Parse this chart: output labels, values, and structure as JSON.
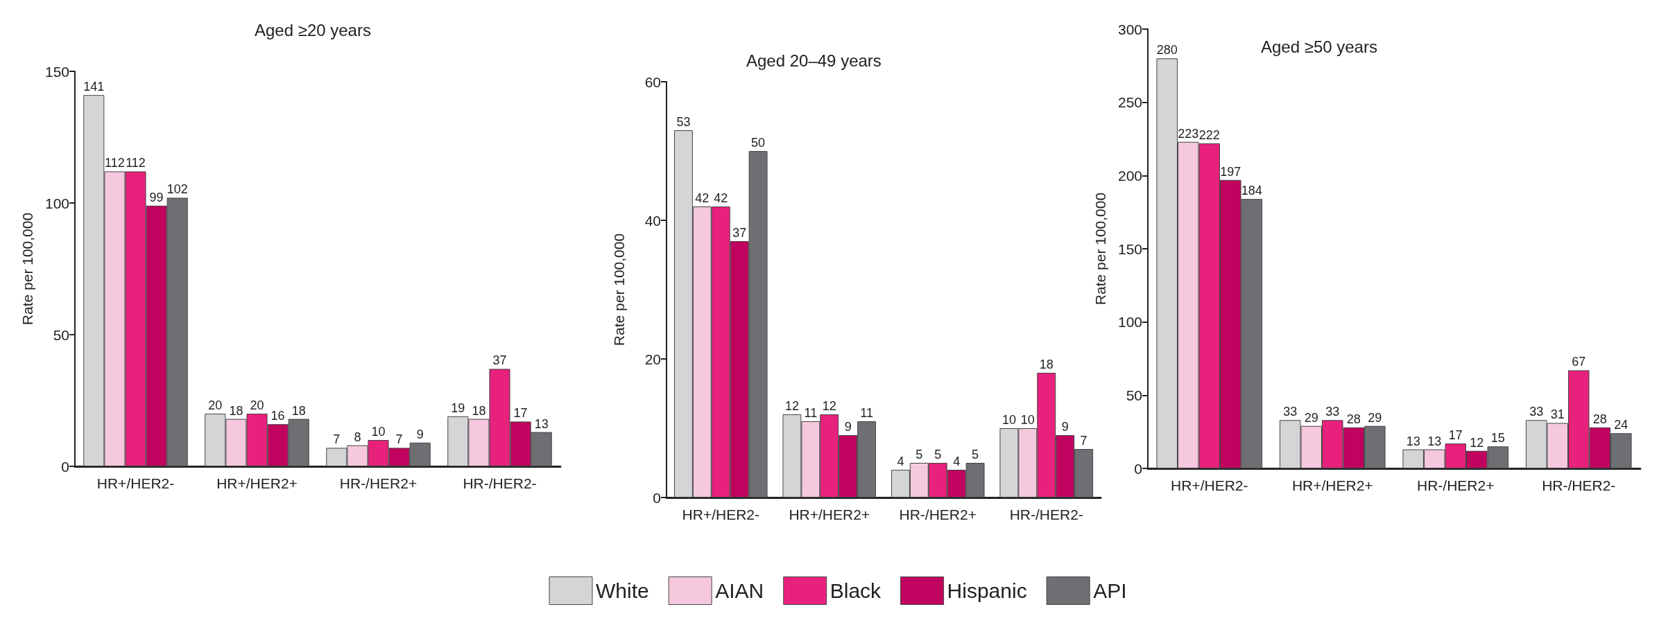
{
  "chart_data": [
    {
      "type": "bar",
      "title": "Aged ≥20 years",
      "ylabel": "Rate per 100,000",
      "categories": [
        "HR+/HER2-",
        "HR+/HER2+",
        "HR-/HER2+",
        "HR-/HER2-"
      ],
      "ylim": [
        0,
        150
      ],
      "yticks": [
        0,
        50,
        100,
        150
      ],
      "grid": false,
      "data_labels": true,
      "series": [
        {
          "color": "#d4d5d6",
          "values": [
            141,
            20,
            7,
            19
          ]
        },
        {
          "color": "#f5c8dd",
          "values": [
            112,
            18,
            8,
            18
          ]
        },
        {
          "color": "#e8217c",
          "values": [
            112,
            20,
            10,
            37
          ]
        },
        {
          "color": "#c1035f",
          "values": [
            99,
            16,
            7,
            17
          ]
        },
        {
          "color": "#6e6f73",
          "values": [
            102,
            18,
            9,
            13
          ]
        }
      ]
    },
    {
      "type": "bar",
      "title": "Aged 20–49 years",
      "ylabel": "Rate per 100,000",
      "categories": [
        "HR+/HER2-",
        "HR+/HER2+",
        "HR-/HER2+",
        "HR-/HER2-"
      ],
      "ylim": [
        0,
        60
      ],
      "yticks": [
        0,
        20,
        40,
        60
      ],
      "grid": false,
      "data_labels": true,
      "legend": "bottom",
      "series": [
        {
          "name": "White",
          "color": "#d4d5d6",
          "values": [
            53,
            12,
            4,
            10
          ]
        },
        {
          "name": "AIAN",
          "color": "#f5c8dd",
          "values": [
            42,
            11,
            5,
            10
          ]
        },
        {
          "name": "Black",
          "color": "#e8217c",
          "values": [
            42,
            12,
            5,
            18
          ]
        },
        {
          "name": "Hispanic",
          "color": "#c1035f",
          "values": [
            37,
            9,
            4,
            9
          ]
        },
        {
          "name": "API",
          "color": "#6e6f73",
          "values": [
            50,
            11,
            5,
            7
          ]
        }
      ]
    },
    {
      "type": "bar",
      "title": "Aged ≥50 years",
      "ylabel": "Rate per 100,000",
      "categories": [
        "HR+/HER2-",
        "HR+/HER2+",
        "HR-/HER2+",
        "HR-/HER2-"
      ],
      "ylim": [
        0,
        300
      ],
      "yticks": [
        0,
        50,
        100,
        150,
        200,
        250,
        300
      ],
      "grid": false,
      "data_labels": true,
      "series": [
        {
          "color": "#d4d5d6",
          "values": [
            280,
            33,
            13,
            33
          ]
        },
        {
          "color": "#f5c8dd",
          "values": [
            223,
            29,
            13,
            31
          ]
        },
        {
          "color": "#e8217c",
          "values": [
            222,
            33,
            17,
            67
          ]
        },
        {
          "color": "#c1035f",
          "values": [
            197,
            28,
            12,
            28
          ]
        },
        {
          "color": "#6e6f73",
          "values": [
            184,
            29,
            15,
            24
          ]
        }
      ]
    }
  ]
}
